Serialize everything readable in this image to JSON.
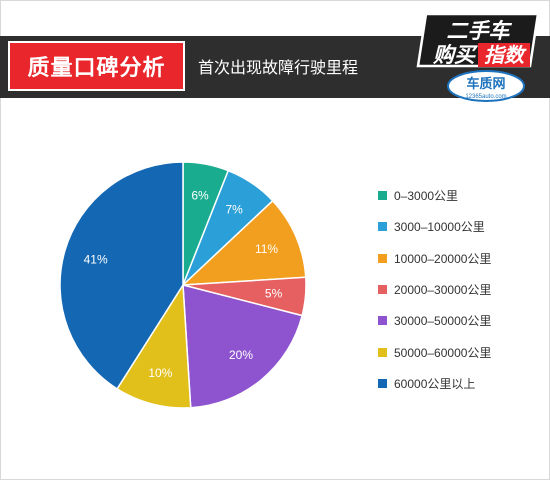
{
  "header": {
    "title": "质量口碑分析",
    "subtitle": "首次出现故障行驶里程",
    "logo_line1": "二手车",
    "logo_line2_a": "购买",
    "logo_line2_b": "指数",
    "logo_brand": "车质网",
    "logo_url": "12365auto.com"
  },
  "colors": {
    "header_bar": "#2e2e2e",
    "title_tag": "#e8262b",
    "logo_accent": "#e8262b",
    "logo_blue": "#1e73be"
  },
  "chart_data": {
    "type": "pie",
    "title": "",
    "start_angle_deg": 0,
    "direction": "clockwise",
    "legend_position": "right",
    "slices": [
      {
        "label": "0–3000公里",
        "value": 6,
        "value_label": "6%",
        "color": "#1aac8f"
      },
      {
        "label": "3000–10000公里",
        "value": 7,
        "value_label": "7%",
        "color": "#2a9fd8"
      },
      {
        "label": "10000–20000公里",
        "value": 11,
        "value_label": "11%",
        "color": "#f29f1f"
      },
      {
        "label": "20000–30000公里",
        "value": 5,
        "value_label": "5%",
        "color": "#e65f61"
      },
      {
        "label": "30000–50000公里",
        "value": 20,
        "value_label": "20%",
        "color": "#8e54cf"
      },
      {
        "label": "50000–60000公里",
        "value": 10,
        "value_label": "10%",
        "color": "#e2c01b"
      },
      {
        "label": "60000公里以上",
        "value": 41,
        "value_label": "41%",
        "color": "#1467b2"
      }
    ]
  }
}
